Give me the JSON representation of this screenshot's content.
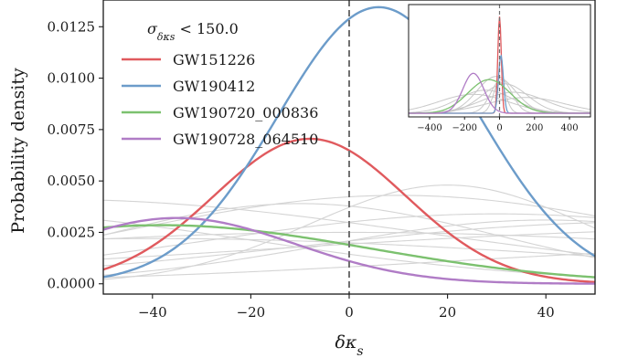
{
  "chart_data": {
    "type": "line",
    "xlabel": "δκ_s",
    "ylabel": "Probability density",
    "xlim": [
      -50,
      50
    ],
    "ylim": [
      -0.0005,
      0.0138
    ],
    "x_ticks": [
      -40,
      -20,
      0,
      20,
      40
    ],
    "y_ticks": [
      0.0,
      0.0025,
      0.005,
      0.0075,
      0.01,
      0.0125
    ],
    "x_tick_labels": [
      "−40",
      "−20",
      "0",
      "20",
      "40"
    ],
    "y_tick_labels": [
      "0.0000",
      "0.0025",
      "0.0050",
      "0.0075",
      "0.0100",
      "0.0125"
    ],
    "vline_x": 0,
    "legend_title": "σδκs < 150.0",
    "legend_position": "upper-left",
    "series": [
      {
        "name": "GW151226",
        "color": "#e05a5e",
        "mu": -8,
        "sigma": 19.5,
        "amp": 0.00705
      },
      {
        "name": "GW190412",
        "color": "#6c9cca",
        "mu": 6,
        "sigma": 20.5,
        "amp": 0.01345
      },
      {
        "name": "GW190720_000836",
        "color": "#7cc16f",
        "mu": -38,
        "sigma": 42,
        "amp": 0.00285
      },
      {
        "name": "GW190728_064510",
        "color": "#b07cc6",
        "mu": -35,
        "sigma": 24,
        "amp": 0.0032
      }
    ],
    "background_curves": [
      {
        "mu": -60,
        "sigma": 75,
        "amp": 0.0041
      },
      {
        "mu": 10,
        "sigma": 55,
        "amp": 0.0043
      },
      {
        "mu": 30,
        "sigma": 60,
        "amp": 0.0034
      },
      {
        "mu": 60,
        "sigma": 70,
        "amp": 0.003
      },
      {
        "mu": 90,
        "sigma": 110,
        "amp": 0.0027
      },
      {
        "mu": -80,
        "sigma": 60,
        "amp": 0.0035
      },
      {
        "mu": 100,
        "sigma": 80,
        "amp": 0.0018
      },
      {
        "mu": 20,
        "sigma": 28,
        "amp": 0.0048
      },
      {
        "mu": 0,
        "sigma": 95,
        "amp": 0.0025
      },
      {
        "mu": -10,
        "sigma": 40,
        "amp": 0.0039
      },
      {
        "mu": 40,
        "sigma": 45,
        "amp": 0.0031
      },
      {
        "mu": -40,
        "sigma": 90,
        "amp": 0.0022
      }
    ],
    "inset": {
      "xlim": [
        -520,
        520
      ],
      "x_ticks": [
        -400,
        -200,
        0,
        200,
        400
      ],
      "x_tick_labels": [
        "−400",
        "−200",
        "0",
        "200",
        "400"
      ]
    }
  }
}
